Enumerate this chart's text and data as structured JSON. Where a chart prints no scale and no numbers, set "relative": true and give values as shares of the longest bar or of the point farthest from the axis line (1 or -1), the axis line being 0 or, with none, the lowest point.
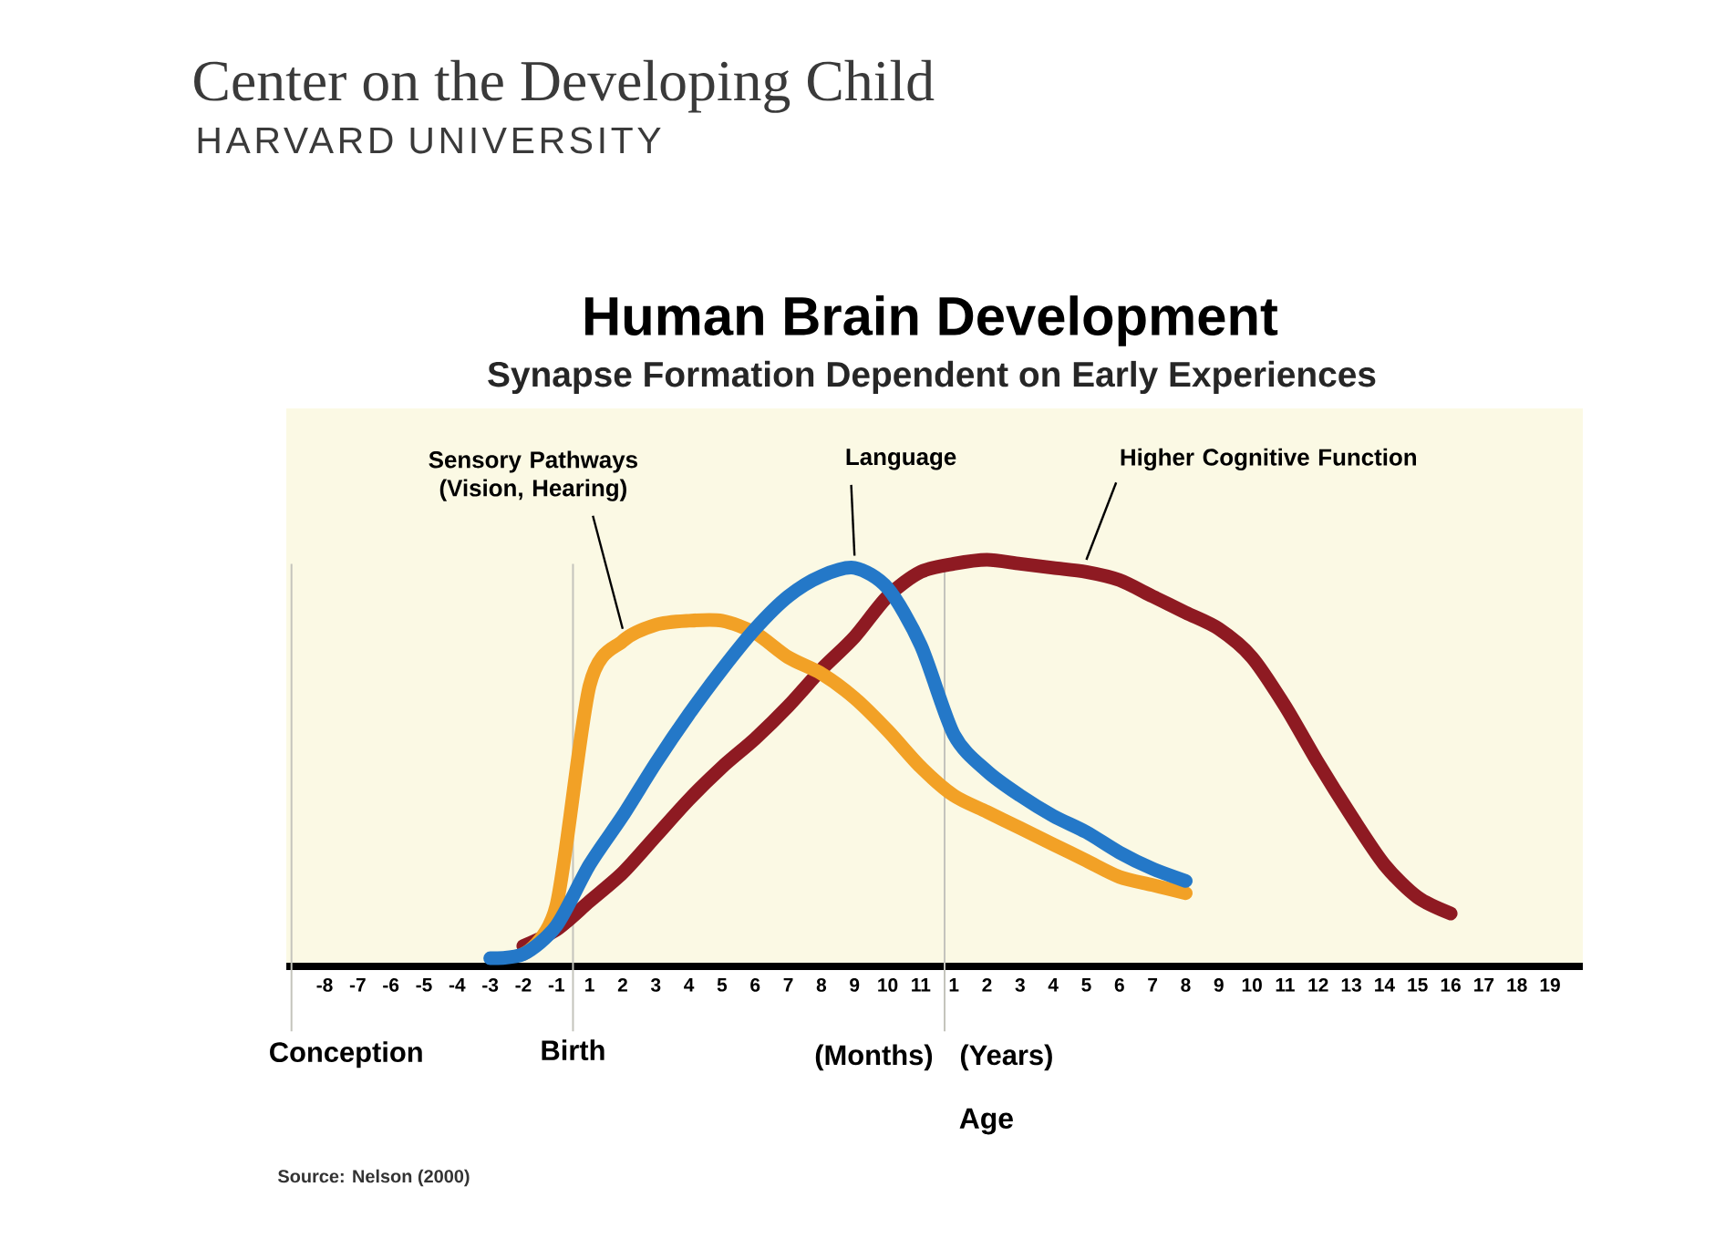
{
  "chart_data": {
    "type": "line",
    "title": "Human Brain Development",
    "subtitle": "Synapse Formation Dependent on Early Experiences",
    "xlabel": "Age",
    "categories": [
      "-8",
      "-7",
      "-6",
      "-5",
      "-4",
      "-3",
      "-2",
      "-1",
      "1",
      "2",
      "3",
      "4",
      "5",
      "6",
      "7",
      "8",
      "9",
      "10",
      "11",
      "1",
      "2",
      "3",
      "4",
      "5",
      "6",
      "7",
      "8",
      "9",
      "10",
      "11",
      "12",
      "13",
      "14",
      "15",
      "16",
      "17",
      "18",
      "19"
    ],
    "relative": true,
    "series": [
      {
        "name": "Higher Cognitive Function",
        "color": "#8e1a22",
        "values": [
          null,
          null,
          null,
          null,
          null,
          null,
          0.05,
          0.09,
          0.16,
          0.23,
          0.32,
          0.41,
          0.49,
          0.56,
          0.64,
          0.73,
          0.81,
          0.91,
          0.97,
          0.99,
          1,
          0.99,
          0.98,
          0.97,
          0.95,
          0.91,
          0.87,
          0.83,
          0.76,
          0.64,
          0.5,
          0.37,
          0.25,
          0.17,
          0.13,
          null,
          null,
          null
        ]
      },
      {
        "name": "Sensory Pathways (Vision, Hearing)",
        "color": "#f2a126",
        "values": [
          null,
          null,
          null,
          null,
          null,
          null,
          0.03,
          0.15,
          0.69,
          0.8,
          0.84,
          0.85,
          0.85,
          0.82,
          0.76,
          0.72,
          0.66,
          0.58,
          0.49,
          0.42,
          0.38,
          0.34,
          0.3,
          0.26,
          0.22,
          0.2,
          0.18,
          null,
          null,
          null,
          null,
          null,
          null,
          null,
          null,
          null,
          null,
          null
        ]
      },
      {
        "name": "Language",
        "color": "#2478c8",
        "values": [
          null,
          null,
          null,
          null,
          null,
          0.02,
          0.03,
          0.1,
          0.25,
          0.37,
          0.5,
          0.62,
          0.73,
          0.83,
          0.91,
          0.96,
          0.98,
          0.93,
          0.79,
          0.57,
          0.48,
          0.42,
          0.37,
          0.33,
          0.28,
          0.24,
          0.21,
          null,
          null,
          null,
          null,
          null,
          null,
          null,
          null,
          null,
          null,
          null
        ]
      }
    ],
    "annotations": [
      "Center on the Developing Child",
      "HARVARD UNIVERSITY",
      "Conception",
      "Birth",
      "(Months)",
      "(Years)",
      "Source: Nelson (2000)"
    ]
  }
}
